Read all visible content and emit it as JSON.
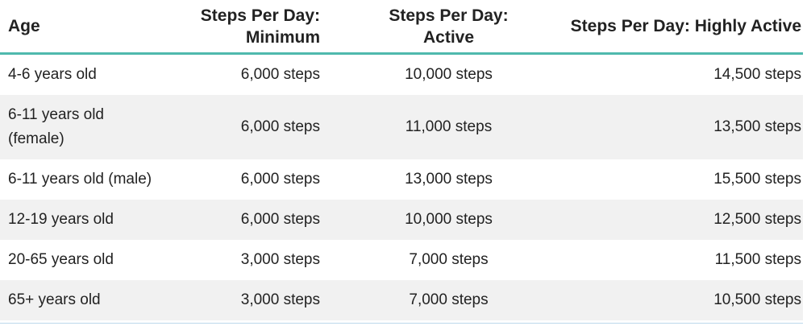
{
  "table": {
    "headers": [
      "Age",
      "Steps Per Day: Minimum",
      "Steps Per Day: Active",
      "Steps Per Day: Highly Active"
    ],
    "rows": [
      [
        "4-6 years old",
        "6,000 steps",
        "10,000 steps",
        "14,500 steps"
      ],
      [
        "6-11 years old (female)",
        "6,000 steps",
        "11,000 steps",
        "13,500 steps"
      ],
      [
        "6-11 years old (male)",
        "6,000 steps",
        "13,000 steps",
        "15,500 steps"
      ],
      [
        "12-19 years old",
        "6,000 steps",
        "10,000 steps",
        "12,500 steps"
      ],
      [
        "20-65 years old",
        "3,000 steps",
        "7,000 steps",
        "11,500 steps"
      ],
      [
        "65+ years old",
        "3,000 steps",
        "7,000 steps",
        "10,500 steps"
      ]
    ]
  },
  "colors": {
    "header_rule": "#4fb9ad",
    "stripe": "#f1f1f1",
    "text": "#222222"
  }
}
